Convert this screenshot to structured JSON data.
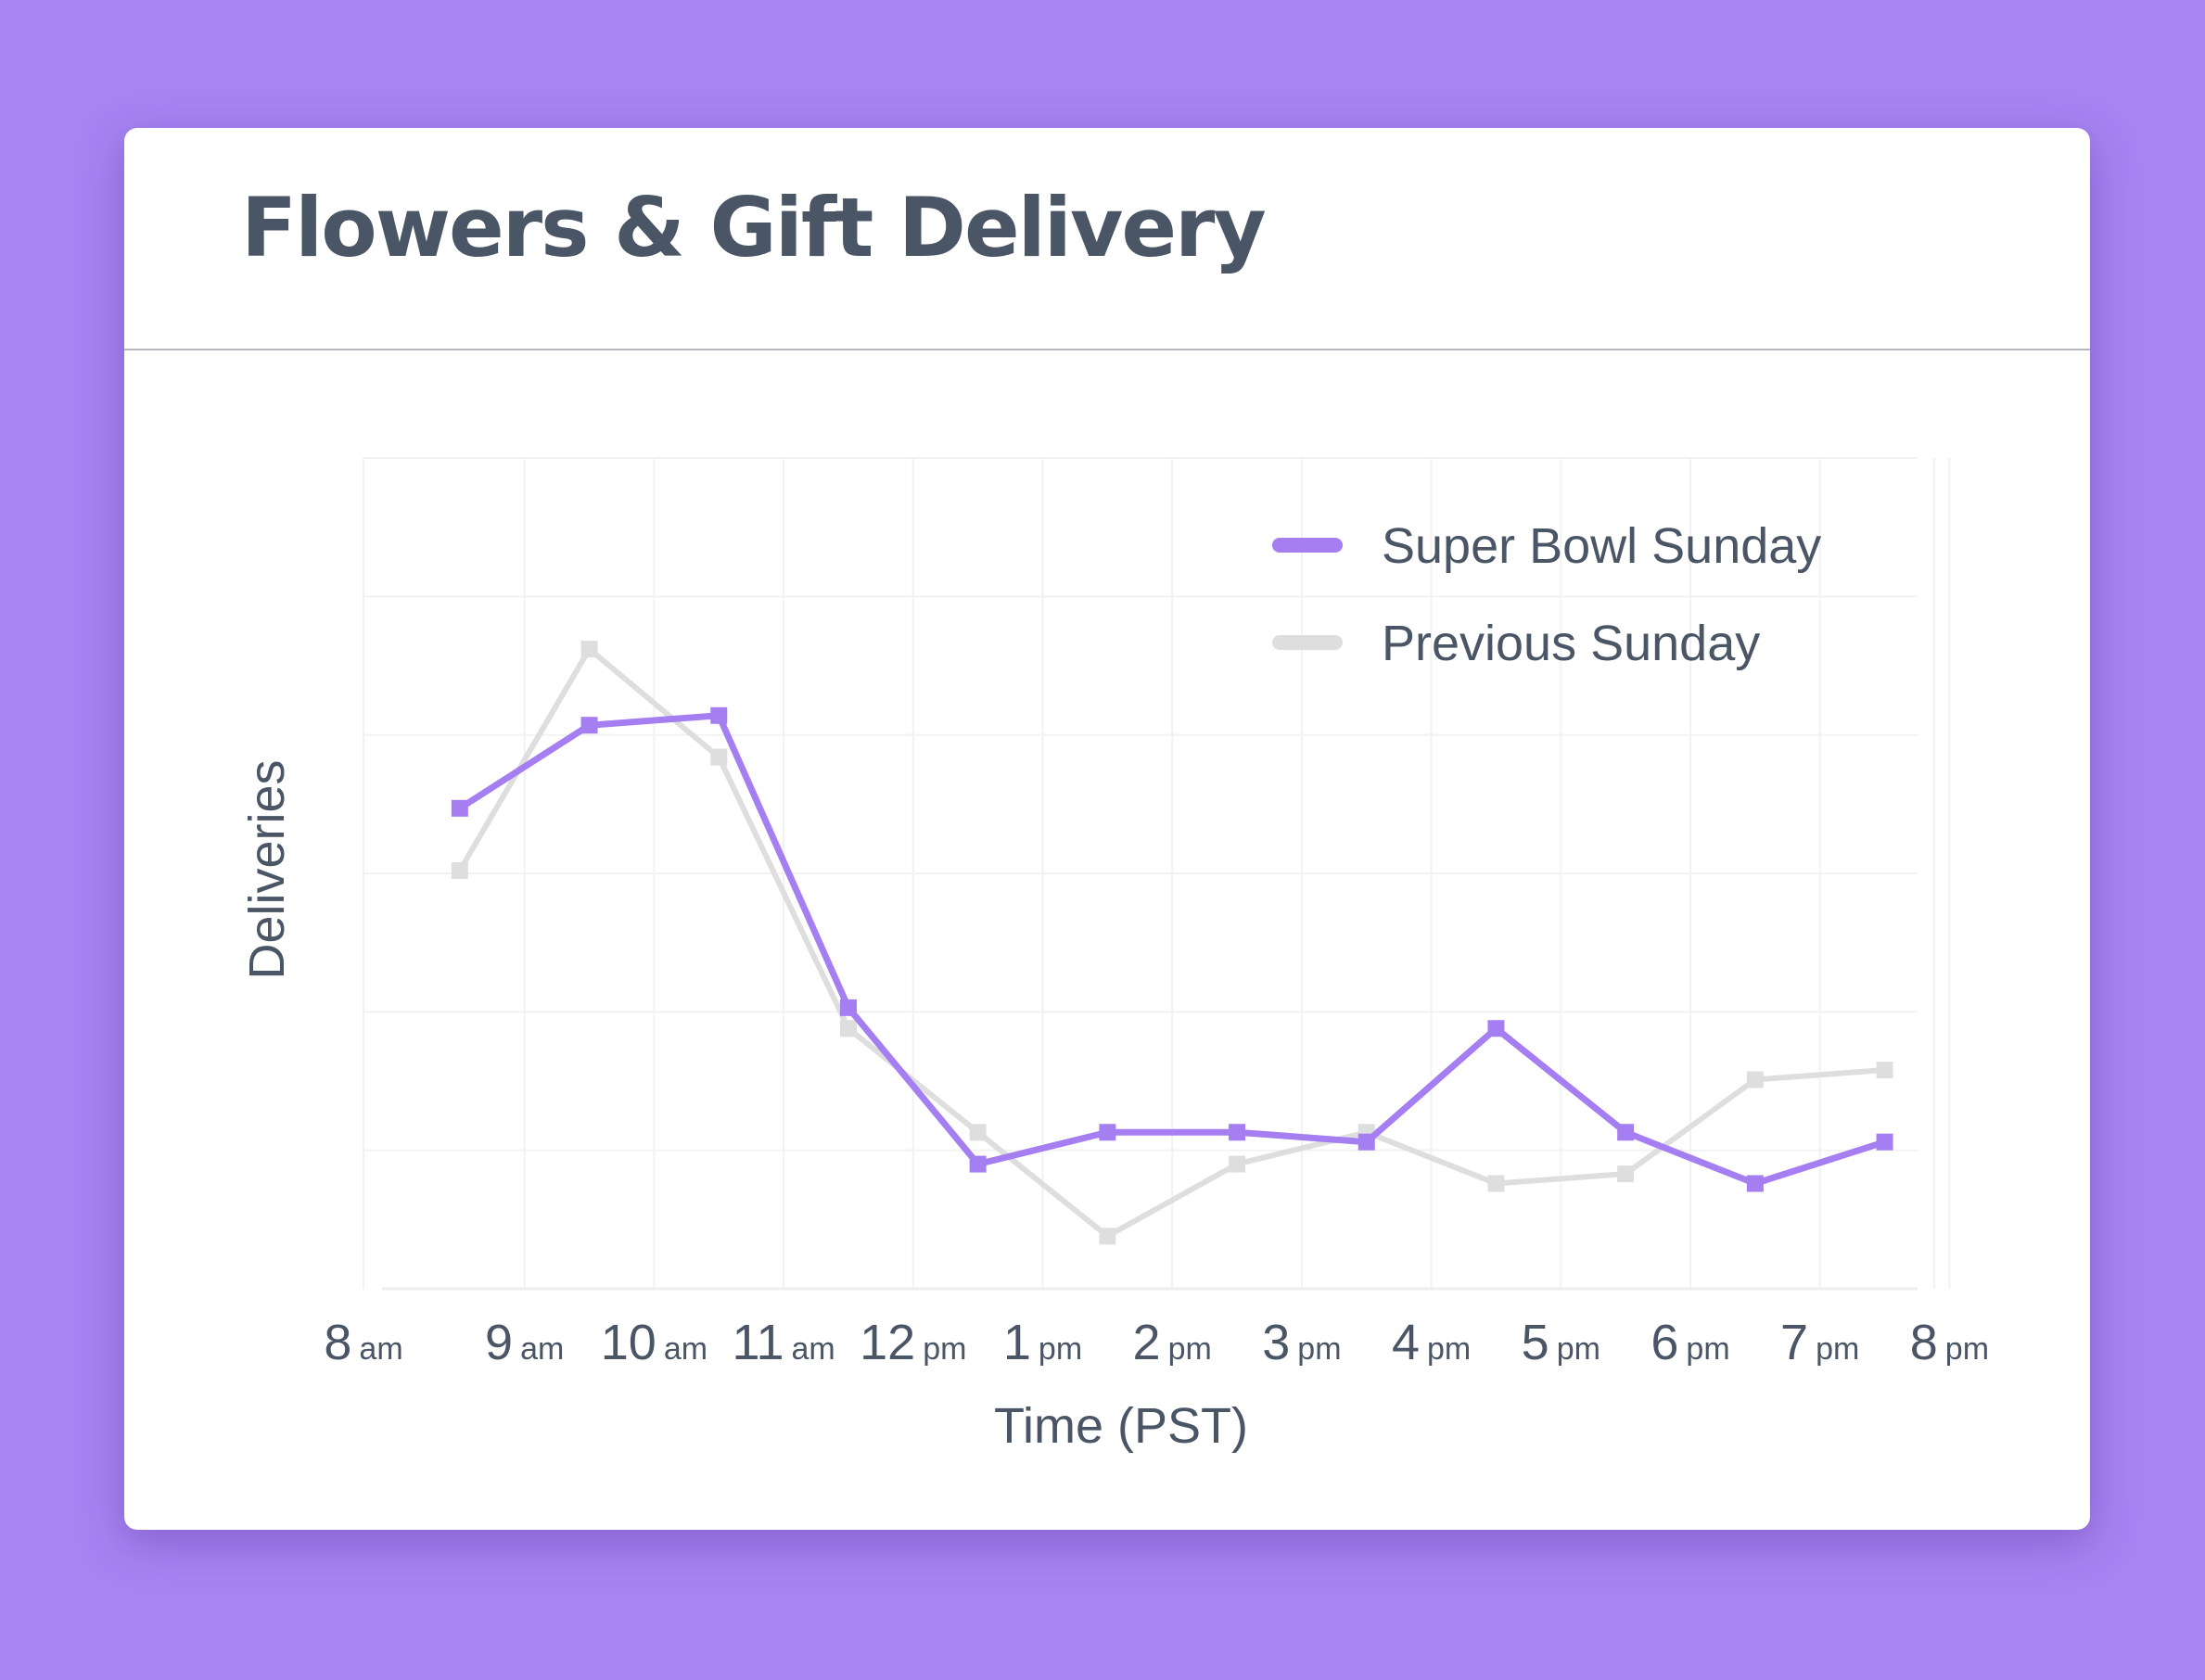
{
  "card": {
    "title": "Flowers & Gift Delivery"
  },
  "chart_data": {
    "type": "line",
    "title": "Flowers & Gift Delivery",
    "xlabel": "Time (PST)",
    "ylabel": "Deliveries",
    "x_ticks": [
      {
        "hour": "8",
        "period": "am"
      },
      {
        "hour": "9",
        "period": "am"
      },
      {
        "hour": "10",
        "period": "am"
      },
      {
        "hour": "11",
        "period": "am"
      },
      {
        "hour": "12",
        "period": "pm"
      },
      {
        "hour": "1",
        "period": "pm"
      },
      {
        "hour": "2",
        "period": "pm"
      },
      {
        "hour": "3",
        "period": "pm"
      },
      {
        "hour": "4",
        "period": "pm"
      },
      {
        "hour": "5",
        "period": "pm"
      },
      {
        "hour": "6",
        "period": "pm"
      },
      {
        "hour": "7",
        "period": "pm"
      },
      {
        "hour": "8",
        "period": "pm"
      }
    ],
    "x": [
      "8:30 am",
      "9:30 am",
      "10:30 am",
      "11:30 am",
      "12:30 pm",
      "1:30 pm",
      "2:30 pm",
      "3:30 pm",
      "4:30 pm",
      "5:30 pm",
      "6:30 pm",
      "7:30 pm"
    ],
    "xlim": [
      0,
      12.4
    ],
    "ylim": [
      0,
      6
    ],
    "y_ticks_labeled": false,
    "grid": true,
    "legend": "top-right",
    "series": [
      {
        "name": "Super Bowl Sunday",
        "color": "#a57ef2",
        "values": [
          3.47,
          4.07,
          4.14,
          2.03,
          0.9,
          1.13,
          1.13,
          1.06,
          1.88,
          1.13,
          0.76,
          1.06
        ]
      },
      {
        "name": "Previous Sunday",
        "color": "#dedede",
        "values": [
          3.02,
          4.62,
          3.84,
          1.88,
          1.13,
          0.38,
          0.9,
          1.13,
          0.76,
          0.83,
          1.51,
          1.58
        ]
      }
    ]
  }
}
